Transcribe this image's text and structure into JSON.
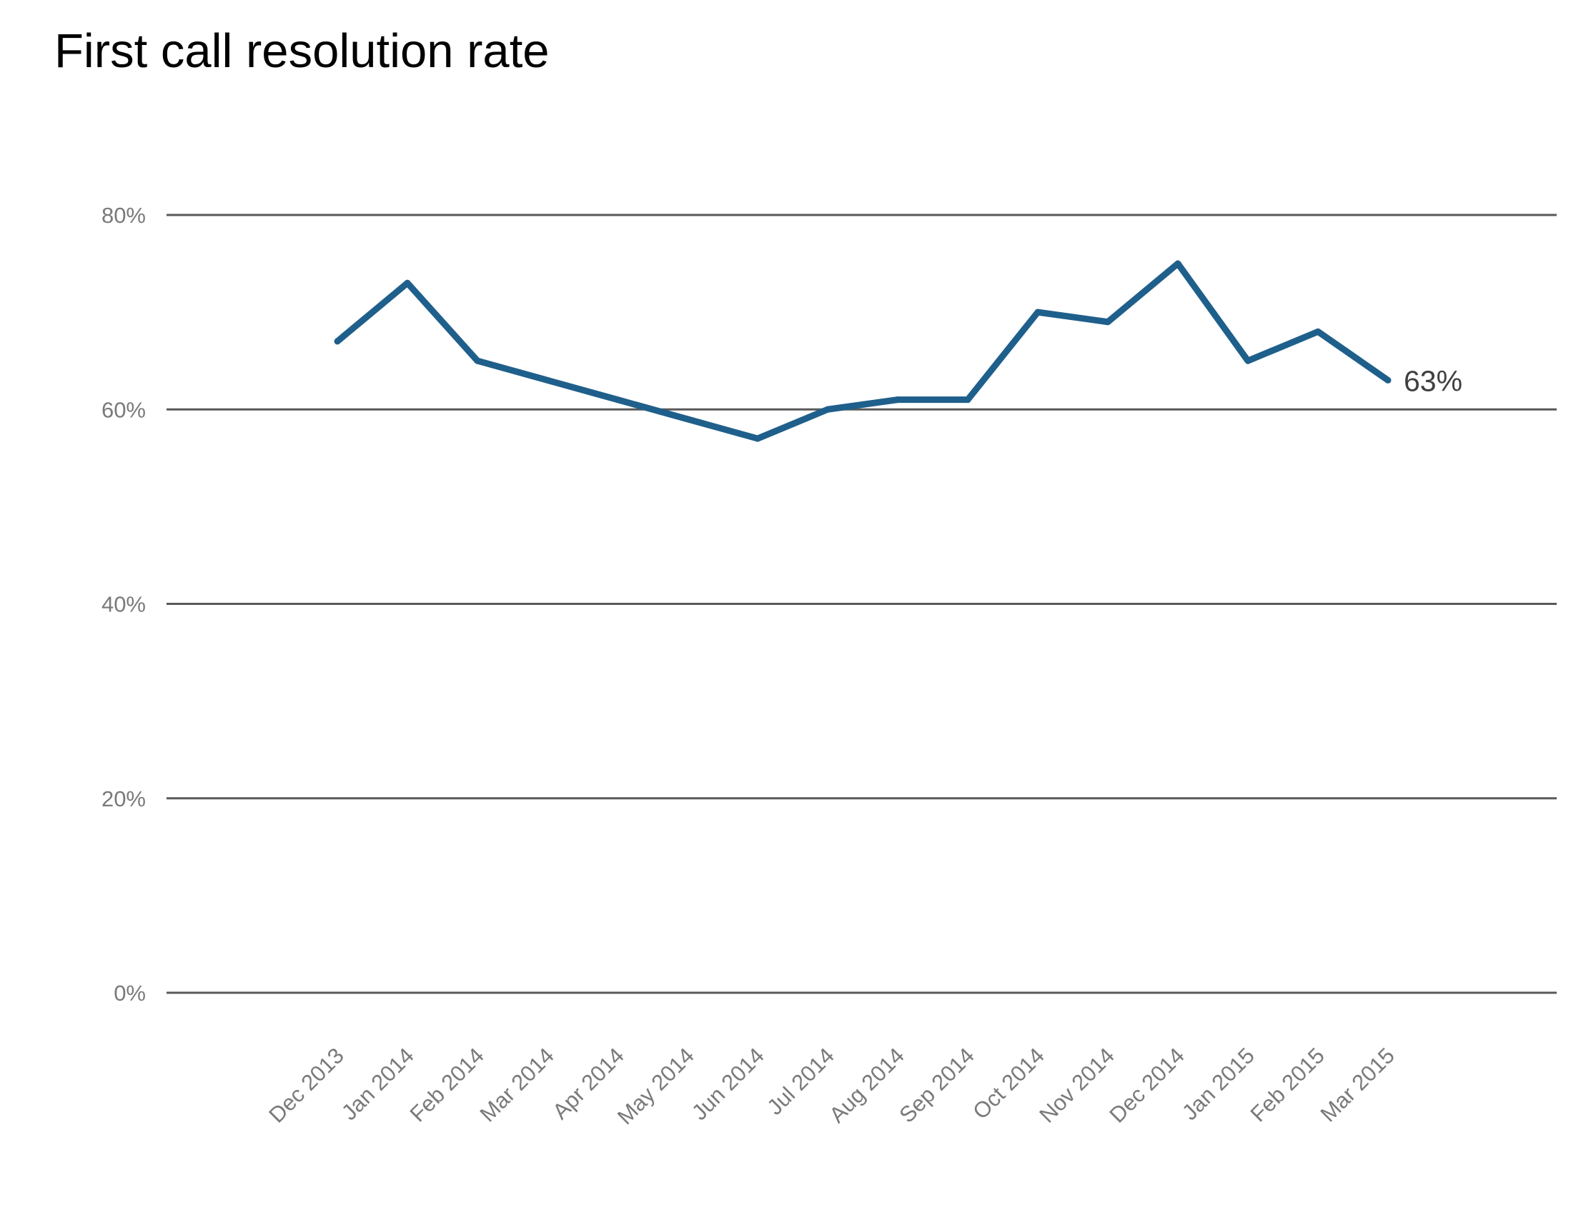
{
  "chart_data": {
    "type": "line",
    "title": "First call resolution rate",
    "xlabel": "",
    "ylabel": "",
    "categories": [
      "Dec 2013",
      "Jan 2014",
      "Feb 2014",
      "Mar 2014",
      "Apr 2014",
      "May 2014",
      "Jun 2014",
      "Jul 2014",
      "Aug 2014",
      "Sep 2014",
      "Oct 2014",
      "Nov 2014",
      "Dec 2014",
      "Jan 2015",
      "Feb 2015",
      "Mar 2015"
    ],
    "series": [
      {
        "values": [
          67,
          73,
          65,
          63,
          61,
          59,
          57,
          60,
          61,
          61,
          70,
          69,
          75,
          65,
          68,
          63
        ],
        "color": "#1f5f8b"
      }
    ],
    "ylim": [
      0,
      80
    ],
    "yticks": [
      {
        "value": 0,
        "label": "0%"
      },
      {
        "value": 20,
        "label": "20%"
      },
      {
        "value": 40,
        "label": "40%"
      },
      {
        "value": 60,
        "label": "60%"
      },
      {
        "value": 80,
        "label": "80%"
      }
    ],
    "grid": true,
    "end_label": "63%",
    "colors": {
      "line": "#1f5f8b",
      "grid": "#595959",
      "tick_text": "#7a7a7a",
      "end_label_text": "#404040",
      "title_text": "#000000"
    }
  }
}
